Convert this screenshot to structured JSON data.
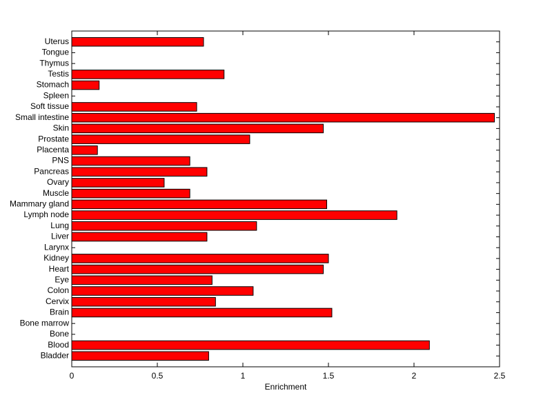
{
  "chart_data": {
    "type": "barh",
    "xlabel": "Enrichment",
    "categories": [
      "Bladder",
      "Blood",
      "Bone",
      "Bone marrow",
      "Brain",
      "Cervix",
      "Colon",
      "Eye",
      "Heart",
      "Kidney",
      "Larynx",
      "Liver",
      "Lung",
      "Lymph node",
      "Mammary gland",
      "Muscle",
      "Ovary",
      "Pancreas",
      "PNS",
      "Placenta",
      "Prostate",
      "Skin",
      "Small intestine",
      "Soft tissue",
      "Spleen",
      "Stomach",
      "Testis",
      "Thymus",
      "Tongue",
      "Uterus"
    ],
    "values": [
      0.8,
      2.09,
      0,
      0,
      1.52,
      0.84,
      1.06,
      0.82,
      1.47,
      1.5,
      0,
      0.79,
      1.08,
      1.9,
      1.49,
      0.69,
      0.54,
      0.79,
      0.69,
      0.15,
      1.04,
      1.47,
      2.47,
      0.73,
      0,
      0.16,
      0.89,
      0,
      0,
      0.77
    ],
    "color": "#ff0000",
    "xlim": [
      0,
      2.5
    ],
    "xticks": [
      0,
      0.5,
      1,
      1.5,
      2,
      2.5
    ]
  }
}
